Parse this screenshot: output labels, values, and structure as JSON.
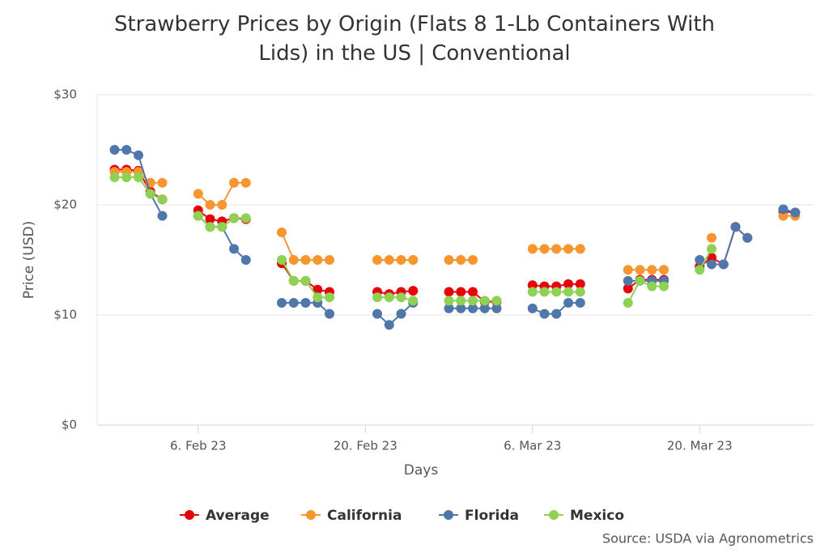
{
  "chart_data": {
    "type": "line",
    "title": "Strawberry Prices by Origin (Flats 8 1-Lb Containers With Lids) in the US | Conventional",
    "x_label": "Days",
    "y_label": "Price (USD)",
    "source": "Source: USDA via Agronometrics",
    "x": [
      "2023-01-30",
      "2023-01-31",
      "2023-02-01",
      "2023-02-02",
      "2023-02-03",
      "2023-02-06",
      "2023-02-07",
      "2023-02-08",
      "2023-02-09",
      "2023-02-10",
      "2023-02-13",
      "2023-02-14",
      "2023-02-15",
      "2023-02-16",
      "2023-02-17",
      "2023-02-21",
      "2023-02-22",
      "2023-02-23",
      "2023-02-24",
      "2023-02-27",
      "2023-02-28",
      "2023-03-01",
      "2023-03-02",
      "2023-03-03",
      "2023-03-06",
      "2023-03-07",
      "2023-03-08",
      "2023-03-09",
      "2023-03-10",
      "2023-03-14",
      "2023-03-15",
      "2023-03-16",
      "2023-03-17",
      "2023-03-20",
      "2023-03-21",
      "2023-03-22",
      "2023-03-23",
      "2023-03-24",
      "2023-03-27",
      "2023-03-28"
    ],
    "xlim": [
      "2023-01-28T13:00",
      "2023-03-29T13:00"
    ],
    "xticks": [
      {
        "value": "2023-02-06",
        "label": "6. Feb 23"
      },
      {
        "value": "2023-02-20",
        "label": "20. Feb 23"
      },
      {
        "value": "2023-03-06",
        "label": "6. Mar 23"
      },
      {
        "value": "2023-03-20",
        "label": "20. Mar 23"
      }
    ],
    "ylim": [
      0,
      30
    ],
    "yticks": [
      {
        "value": 0,
        "label": "$0"
      },
      {
        "value": 10,
        "label": "$10"
      },
      {
        "value": 20,
        "label": "$20"
      },
      {
        "value": 30,
        "label": "$30"
      }
    ],
    "legend": "bottom",
    "series": [
      {
        "name": "Average",
        "color": "#e8000b",
        "values": [
          23.2,
          23.2,
          23.1,
          21.2,
          20.5,
          19.5,
          18.7,
          18.5,
          18.8,
          18.7,
          14.7,
          13.1,
          13.1,
          12.3,
          12.1,
          12.1,
          11.9,
          12.1,
          12.2,
          12.1,
          12.1,
          12.1,
          11.2,
          11.2,
          12.7,
          12.6,
          12.6,
          12.8,
          12.8,
          12.4,
          13.2,
          13.2,
          13.2,
          14.4,
          15.2,
          14.6,
          18,
          17,
          19.4,
          19.3
        ]
      },
      {
        "name": "California",
        "color": "#f7962e",
        "values": [
          23,
          23,
          23,
          22,
          22,
          21,
          20,
          20,
          22,
          22,
          17.5,
          15,
          15,
          15,
          15,
          15,
          15,
          15,
          15,
          15,
          15,
          15,
          null,
          null,
          16,
          16,
          16,
          16,
          16,
          14.1,
          14.1,
          14.1,
          14.1,
          null,
          17,
          null,
          null,
          null,
          19,
          19
        ]
      },
      {
        "name": "Florida",
        "color": "#4f77aa",
        "values": [
          25,
          25,
          24.5,
          21,
          19,
          19,
          18,
          18,
          16,
          15,
          11.1,
          11.1,
          11.1,
          11.1,
          10.1,
          10.1,
          9.1,
          10.1,
          11.1,
          10.6,
          10.6,
          10.6,
          10.6,
          10.6,
          10.6,
          10.1,
          10.1,
          11.1,
          11.1,
          13.1,
          13.1,
          13.1,
          13.1,
          15,
          14.6,
          14.6,
          18,
          17,
          19.6,
          19.3
        ]
      },
      {
        "name": "Mexico",
        "color": "#8fd152",
        "values": [
          22.5,
          22.5,
          22.5,
          21,
          20.5,
          19,
          18,
          18,
          18.8,
          18.8,
          15,
          13.1,
          13.1,
          11.6,
          11.6,
          11.6,
          11.6,
          11.6,
          11.3,
          11.3,
          11.3,
          11.3,
          11.3,
          11.3,
          12.1,
          12.1,
          12.1,
          12.1,
          12.1,
          11.1,
          13.1,
          12.6,
          12.6,
          14.1,
          16,
          null,
          null,
          null,
          null,
          null
        ]
      }
    ]
  }
}
